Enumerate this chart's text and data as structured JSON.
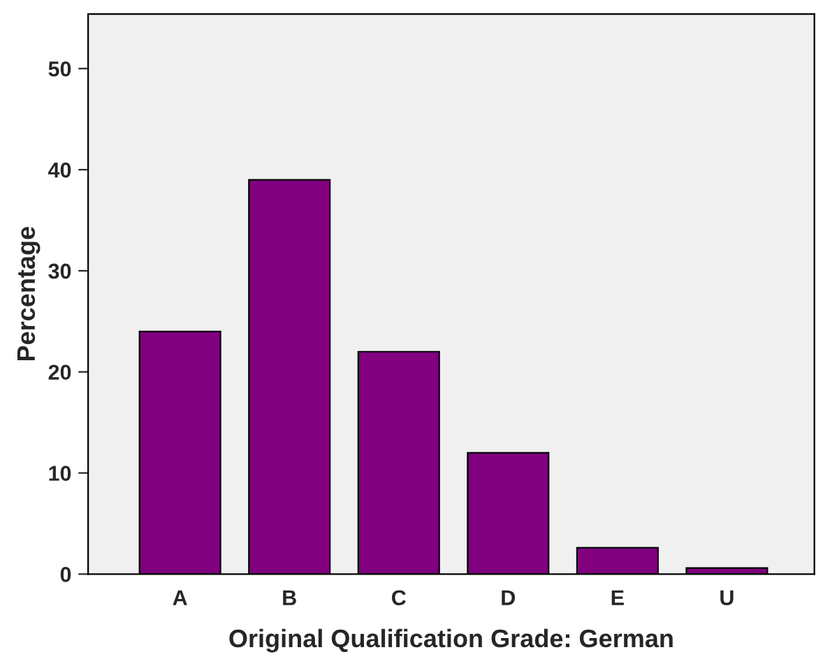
{
  "chart_data": {
    "type": "bar",
    "xlabel": "Original Qualification Grade: German",
    "ylabel": "Percentage",
    "categories": [
      "A",
      "B",
      "C",
      "D",
      "E",
      "U"
    ],
    "values": [
      24,
      39,
      22,
      12,
      2.6,
      0.6
    ],
    "color": "#800080",
    "ylim": [
      0,
      55.4
    ],
    "yticks": [
      0,
      10,
      20,
      30,
      40,
      50
    ],
    "grid": false,
    "legend": false
  }
}
